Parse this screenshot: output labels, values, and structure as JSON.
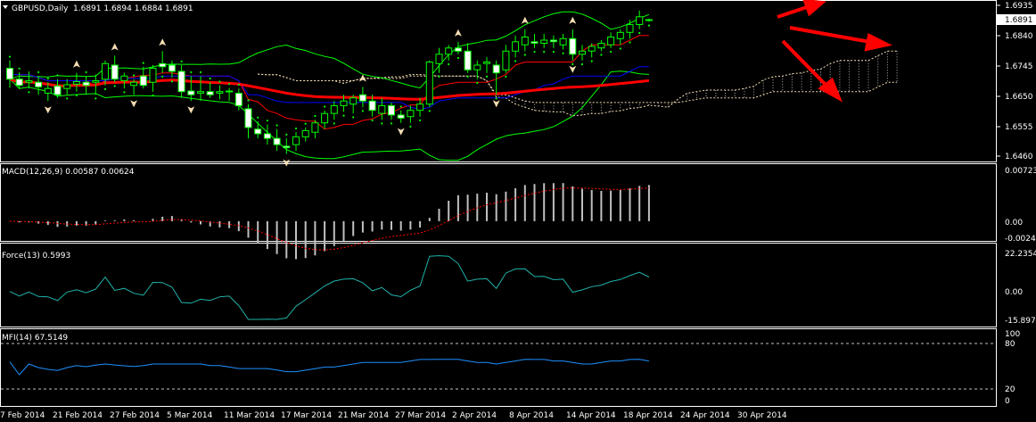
{
  "symbol": "GBPUSD,Daily",
  "ohlc_text": "1.6891 1.6894 1.6884 1.6891",
  "colors": {
    "background": "#000000",
    "frame": "#ffffff",
    "candle_up": "#00ff00",
    "candle_down_fill": "#ffffff",
    "bollinger": "#00ff00",
    "tenkan": "#ff0000",
    "kijun": "#0000ff",
    "ma": "#ff0000",
    "psar": "#00ff00",
    "cloud": "#ffffff",
    "fractal": "#f5deb3",
    "macd_hist": "#c0c0c0",
    "macd_signal": "#ff0000",
    "force": "#20b2aa",
    "mfi": "#1e90ff",
    "arrows": "#ff0000"
  },
  "price_axis": {
    "ticks": [
      "1.6935",
      "1.6840",
      "1.6745",
      "1.6650",
      "1.6555",
      "1.6460"
    ],
    "current": "1.6891"
  },
  "time_axis": {
    "labels": [
      "7 Feb 2014",
      "21 Feb 2014",
      "27 Feb 2014",
      "5 Mar 2014",
      "11 Mar 2014",
      "17 Mar 2014",
      "21 Mar 2014",
      "27 Mar 2014",
      "2 Apr 2014",
      "8 Apr 2014",
      "14 Apr 2014",
      "18 Apr 2014",
      "24 Apr 2014",
      "30 Apr 2014"
    ]
  },
  "macd": {
    "title": "MACD(12,26,9) 0.00587 0.00624",
    "ticks": [
      "0.00723",
      "0.00",
      "-0.00242"
    ]
  },
  "force": {
    "title": "Force(13) 0.5993",
    "ticks": [
      "22.2354",
      "0.00",
      "-15.897"
    ]
  },
  "mfi": {
    "title": "MFI(14) 67.5149",
    "ticks": [
      "100",
      "80",
      "20",
      "0"
    ]
  },
  "chart_data": {
    "type": "candlestick",
    "symbol": "GBPUSD",
    "timeframe": "Daily",
    "ylim": [
      1.6436,
      1.6951
    ],
    "candles": [
      [
        1.6735,
        1.676,
        1.6672,
        1.67
      ],
      [
        1.67,
        1.6722,
        1.6668,
        1.668
      ],
      [
        1.669,
        1.6725,
        1.667,
        1.6695
      ],
      [
        1.669,
        1.671,
        1.665,
        1.6675
      ],
      [
        1.6655,
        1.669,
        1.663,
        1.667
      ],
      [
        1.6678,
        1.67,
        1.664,
        1.665
      ],
      [
        1.667,
        1.67,
        1.665,
        1.6682
      ],
      [
        1.6684,
        1.672,
        1.666,
        1.6692
      ],
      [
        1.669,
        1.671,
        1.665,
        1.668
      ],
      [
        1.669,
        1.6715,
        1.665,
        1.6695
      ],
      [
        1.67,
        1.676,
        1.668,
        1.675
      ],
      [
        1.6745,
        1.6775,
        1.669,
        1.67
      ],
      [
        1.6695,
        1.672,
        1.667,
        1.671
      ],
      [
        1.668,
        1.67,
        1.665,
        1.669
      ],
      [
        1.671,
        1.674,
        1.667,
        1.668
      ],
      [
        1.669,
        1.6745,
        1.666,
        1.6735
      ],
      [
        1.675,
        1.679,
        1.672,
        1.674
      ],
      [
        1.6745,
        1.676,
        1.6705,
        1.6725
      ],
      [
        1.6725,
        1.6745,
        1.664,
        1.666
      ],
      [
        1.6662,
        1.671,
        1.663,
        1.665
      ],
      [
        1.6655,
        1.671,
        1.663,
        1.666
      ],
      [
        1.666,
        1.669,
        1.664,
        1.665
      ],
      [
        1.6655,
        1.668,
        1.6635,
        1.666
      ],
      [
        1.6662,
        1.6672,
        1.663,
        1.666
      ],
      [
        1.6655,
        1.667,
        1.66,
        1.6615
      ],
      [
        1.6605,
        1.662,
        1.651,
        1.6545
      ],
      [
        1.654,
        1.6565,
        1.651,
        1.6525
      ],
      [
        1.6525,
        1.6555,
        1.649,
        1.651
      ],
      [
        1.651,
        1.654,
        1.647,
        1.649
      ],
      [
        1.6485,
        1.651,
        1.646,
        1.648
      ],
      [
        1.649,
        1.653,
        1.647,
        1.6515
      ],
      [
        1.6515,
        1.6545,
        1.65,
        1.6535
      ],
      [
        1.653,
        1.657,
        1.651,
        1.656
      ],
      [
        1.656,
        1.66,
        1.654,
        1.659
      ],
      [
        1.659,
        1.663,
        1.657,
        1.6615
      ],
      [
        1.6615,
        1.665,
        1.6595,
        1.663
      ],
      [
        1.662,
        1.665,
        1.659,
        1.664
      ],
      [
        1.665,
        1.6675,
        1.661,
        1.663
      ],
      [
        1.663,
        1.665,
        1.658,
        1.66
      ],
      [
        1.659,
        1.664,
        1.657,
        1.6615
      ],
      [
        1.6615,
        1.6625,
        1.657,
        1.6585
      ],
      [
        1.6585,
        1.66,
        1.656,
        1.6575
      ],
      [
        1.658,
        1.6615,
        1.656,
        1.66
      ],
      [
        1.66,
        1.664,
        1.658,
        1.662
      ],
      [
        1.662,
        1.676,
        1.661,
        1.6755
      ],
      [
        1.675,
        1.68,
        1.672,
        1.678
      ],
      [
        1.678,
        1.681,
        1.676,
        1.68
      ],
      [
        1.68,
        1.682,
        1.678,
        1.679
      ],
      [
        1.679,
        1.6815,
        1.672,
        1.673
      ],
      [
        1.673,
        1.676,
        1.67,
        1.6745
      ],
      [
        1.675,
        1.677,
        1.672,
        1.6755
      ],
      [
        1.6745,
        1.676,
        1.665,
        1.672
      ],
      [
        1.673,
        1.681,
        1.672,
        1.679
      ],
      [
        1.679,
        1.684,
        1.677,
        1.682
      ],
      [
        1.681,
        1.686,
        1.679,
        1.6835
      ],
      [
        1.682,
        1.6845,
        1.68,
        1.6815
      ],
      [
        1.6815,
        1.6845,
        1.68,
        1.6825
      ],
      [
        1.6825,
        1.684,
        1.68,
        1.682
      ],
      [
        1.681,
        1.6845,
        1.6795,
        1.683
      ],
      [
        1.683,
        1.686,
        1.676,
        1.678
      ],
      [
        1.678,
        1.681,
        1.676,
        1.679
      ],
      [
        1.679,
        1.6815,
        1.677,
        1.6805
      ],
      [
        1.68,
        1.6825,
        1.679,
        1.6815
      ],
      [
        1.681,
        1.685,
        1.68,
        1.6835
      ],
      [
        1.683,
        1.686,
        1.681,
        1.685
      ],
      [
        1.685,
        1.689,
        1.683,
        1.6875
      ],
      [
        1.6875,
        1.692,
        1.686,
        1.69
      ],
      [
        1.6891,
        1.6894,
        1.6884,
        1.6891
      ]
    ],
    "annotations": [
      "trend-arrow-up",
      "trend-arrow-right",
      "trend-arrow-down"
    ]
  }
}
